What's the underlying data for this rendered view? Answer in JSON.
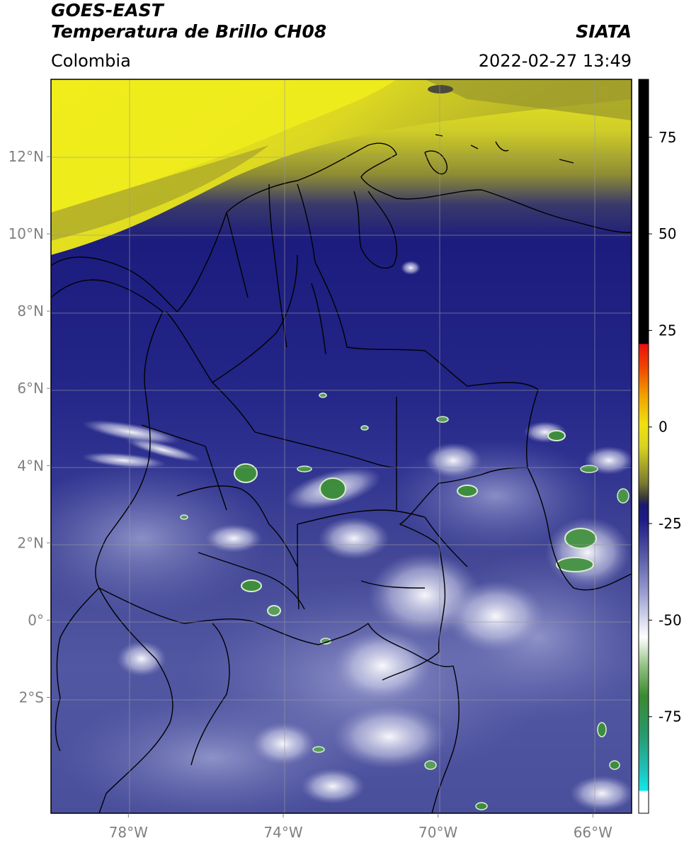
{
  "header": {
    "satellite": "GOES-EAST",
    "product": "Temperatura de Brillo CH08",
    "organization": "SIATA",
    "region": "Colombia",
    "timestamp": "2022-02-27 13:49"
  },
  "map": {
    "lat_ticks": [
      {
        "value": 12,
        "label": "12°N"
      },
      {
        "value": 10,
        "label": "10°N"
      },
      {
        "value": 8,
        "label": "8°N"
      },
      {
        "value": 6,
        "label": "6°N"
      },
      {
        "value": 4,
        "label": "4°N"
      },
      {
        "value": 2,
        "label": "2°N"
      },
      {
        "value": 0,
        "label": "0°"
      },
      {
        "value": -2,
        "label": "2°S"
      }
    ],
    "lon_ticks": [
      {
        "value": -78,
        "label": "78°W"
      },
      {
        "value": -74,
        "label": "74°W"
      },
      {
        "value": -70,
        "label": "70°W"
      },
      {
        "value": -66,
        "label": "66°W"
      }
    ],
    "extent": {
      "lon_min": -80,
      "lon_max": -65,
      "lat_min": -5,
      "lat_max": 14
    },
    "colors": {
      "warm_yellow": "#f2ee1a",
      "olive": "#7a7a2a",
      "deep_blue": "#1e1e82",
      "mid_blue": "#3a3e96",
      "light_purple": "#8c90c4",
      "white": "#ffffff",
      "green": "#3a8a3a"
    }
  },
  "colorbar": {
    "ticks": [
      {
        "value": 75,
        "label": "75"
      },
      {
        "value": 50,
        "label": "50"
      },
      {
        "value": 25,
        "label": "25"
      },
      {
        "value": 0,
        "label": "0"
      },
      {
        "value": -25,
        "label": "-25"
      },
      {
        "value": -50,
        "label": "-50"
      },
      {
        "value": -75,
        "label": "-75"
      }
    ],
    "range": [
      -100,
      90
    ]
  }
}
